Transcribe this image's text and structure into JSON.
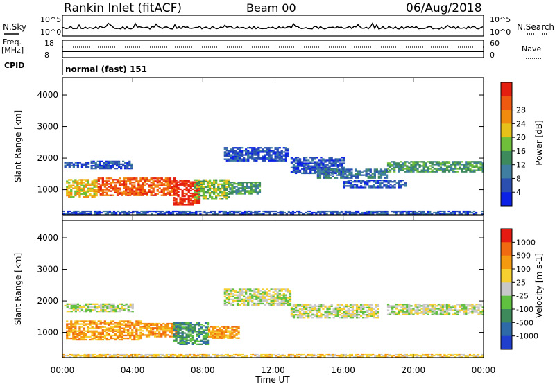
{
  "header": {
    "station": "Rankin Inlet (fitACF)",
    "beam": "Beam 00",
    "date": "06/Aug/2018"
  },
  "summary_panels": {
    "nsky_label": "N.Sky",
    "nsearch_label": "N.Search",
    "noise_ticks": [
      "10^5",
      "10^0"
    ],
    "freq_label": "Freq.",
    "freq_unit": "[MHz]",
    "freq_ticks": [
      "18",
      "8"
    ],
    "nave_label": "Nave",
    "nave_ticks": [
      "60",
      "0"
    ],
    "cpid_label": "CPID",
    "cpid_value": "normal (fast) 151"
  },
  "chart_data": [
    {
      "type": "heatmap",
      "title": "",
      "ylabel": "Slant Range [km]",
      "ylim": [
        200,
        4550
      ],
      "yticks": [
        1000,
        2000,
        3000,
        4000
      ],
      "xticks": [
        "00:00",
        "04:00",
        "08:00",
        "12:00",
        "16:00",
        "20:00",
        "00:00"
      ],
      "xlim_hours": [
        0,
        24
      ],
      "colorbar": {
        "label": "Power [dB]",
        "ticks": [
          "4",
          "8",
          "12",
          "16",
          "20",
          "24",
          "28"
        ],
        "colors": [
          "#0b22e6",
          "#2a4fb0",
          "#3f7ea0",
          "#3d8a5c",
          "#6fbf3a",
          "#e8c01a",
          "#f08b10",
          "#ee5a10",
          "#e51f10"
        ]
      },
      "bands": [
        {
          "t0": 1.6,
          "t1": 4.0,
          "r0": 1650,
          "r1": 1900,
          "level": 1
        },
        {
          "t0": 0.1,
          "t1": 1.5,
          "r0": 1700,
          "r1": 1850,
          "level": 1
        },
        {
          "t0": 0.2,
          "t1": 2.0,
          "r0": 750,
          "r1": 1300,
          "level": 5
        },
        {
          "t0": 2.0,
          "t1": 6.5,
          "r0": 800,
          "r1": 1350,
          "level": 7
        },
        {
          "t0": 6.3,
          "t1": 7.8,
          "r0": 500,
          "r1": 1300,
          "level": 8
        },
        {
          "t0": 7.5,
          "t1": 9.5,
          "r0": 700,
          "r1": 1300,
          "level": 4
        },
        {
          "t0": 9.5,
          "t1": 11.2,
          "r0": 850,
          "r1": 1250,
          "level": 3
        },
        {
          "t0": 9.2,
          "t1": 12.8,
          "r0": 1900,
          "r1": 2350,
          "level": 1
        },
        {
          "t0": 13.0,
          "t1": 16.0,
          "r0": 1500,
          "r1": 2000,
          "level": 1
        },
        {
          "t0": 14.5,
          "t1": 18.5,
          "r0": 1350,
          "r1": 1650,
          "level": 2
        },
        {
          "t0": 16.0,
          "t1": 19.5,
          "r0": 1050,
          "r1": 1300,
          "level": 1
        },
        {
          "t0": 18.5,
          "t1": 24.0,
          "r0": 1550,
          "r1": 1900,
          "level": 3
        },
        {
          "t0": 0.0,
          "t1": 24.0,
          "r0": 200,
          "r1": 300,
          "level": 1
        }
      ]
    },
    {
      "type": "heatmap",
      "title": "",
      "ylabel": "Slant Range [km]",
      "ylim": [
        200,
        4550
      ],
      "yticks": [
        1000,
        2000,
        3000,
        4000
      ],
      "xticks": [
        "00:00",
        "04:00",
        "08:00",
        "12:00",
        "16:00",
        "20:00",
        "00:00"
      ],
      "xlabel": "Time UT",
      "xlim_hours": [
        0,
        24
      ],
      "colorbar": {
        "label": "Velocity [m s-1]",
        "ticks": [
          "1000",
          "500",
          "100",
          "25",
          "-25",
          "-100",
          "-500",
          "-1000"
        ],
        "colors": [
          "#1f3fcc",
          "#2e6aa8",
          "#3e8a5a",
          "#60c040",
          "#c8c8c8",
          "#f5d030",
          "#f59a10",
          "#ef6a10",
          "#e51a10"
        ]
      },
      "bands": [
        {
          "t0": 0.1,
          "t1": 4.0,
          "r0": 1650,
          "r1": 1900,
          "level": 4
        },
        {
          "t0": 0.2,
          "t1": 4.5,
          "r0": 750,
          "r1": 1350,
          "level": 6
        },
        {
          "t0": 4.5,
          "t1": 6.5,
          "r0": 850,
          "r1": 1300,
          "level": 6
        },
        {
          "t0": 6.3,
          "t1": 8.3,
          "r0": 600,
          "r1": 1300,
          "level": 2
        },
        {
          "t0": 8.3,
          "t1": 10.0,
          "r0": 800,
          "r1": 1200,
          "level": 6
        },
        {
          "t0": 9.2,
          "t1": 13.0,
          "r0": 1850,
          "r1": 2350,
          "level": 4
        },
        {
          "t0": 13.0,
          "t1": 18.0,
          "r0": 1450,
          "r1": 1900,
          "level": 4
        },
        {
          "t0": 18.5,
          "t1": 24.0,
          "r0": 1550,
          "r1": 1900,
          "level": 4
        },
        {
          "t0": 0.0,
          "t1": 24.0,
          "r0": 200,
          "r1": 300,
          "level": 5
        }
      ]
    }
  ]
}
